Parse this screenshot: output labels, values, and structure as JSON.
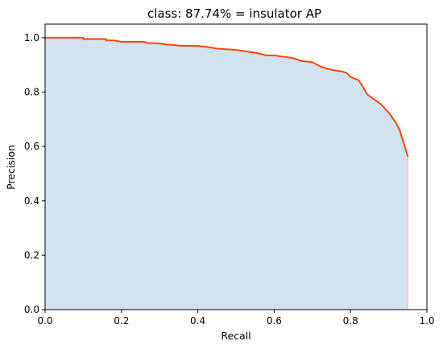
{
  "chart_data": {
    "type": "area",
    "title": "class: 87.74% = insulator AP",
    "xlabel": "Recall",
    "ylabel": "Precision",
    "xlim": [
      0.0,
      1.0
    ],
    "ylim": [
      0.0,
      1.05
    ],
    "grid": false,
    "xticks": [
      "0.0",
      "0.2",
      "0.4",
      "0.6",
      "0.8",
      "1.0"
    ],
    "yticks": [
      "0.0",
      "0.2",
      "0.4",
      "0.6",
      "0.8",
      "1.0"
    ],
    "fill_color": "#d2e3ef",
    "line_color": "#ff4500",
    "edge_color": "#f0b8b8",
    "series": [
      {
        "x": [
          0.0,
          0.1,
          0.1,
          0.16,
          0.16,
          0.18,
          0.2,
          0.22,
          0.26,
          0.27,
          0.29,
          0.32,
          0.36,
          0.4,
          0.43,
          0.45,
          0.5,
          0.55,
          0.58,
          0.6,
          0.65,
          0.67,
          0.7,
          0.72,
          0.74,
          0.76,
          0.78,
          0.79,
          0.8,
          0.81,
          0.82,
          0.83,
          0.84,
          0.845,
          0.85,
          0.86,
          0.87,
          0.88,
          0.89,
          0.9,
          0.91,
          0.92,
          0.93,
          0.935,
          0.94,
          0.945,
          0.95
        ],
        "y": [
          1.0,
          1.0,
          0.995,
          0.995,
          0.99,
          0.99,
          0.985,
          0.985,
          0.985,
          0.98,
          0.98,
          0.975,
          0.97,
          0.97,
          0.965,
          0.96,
          0.955,
          0.945,
          0.935,
          0.935,
          0.925,
          0.915,
          0.91,
          0.895,
          0.885,
          0.88,
          0.875,
          0.87,
          0.855,
          0.85,
          0.845,
          0.825,
          0.8,
          0.79,
          0.785,
          0.775,
          0.765,
          0.755,
          0.74,
          0.725,
          0.705,
          0.685,
          0.655,
          0.63,
          0.61,
          0.585,
          0.565
        ]
      }
    ]
  }
}
